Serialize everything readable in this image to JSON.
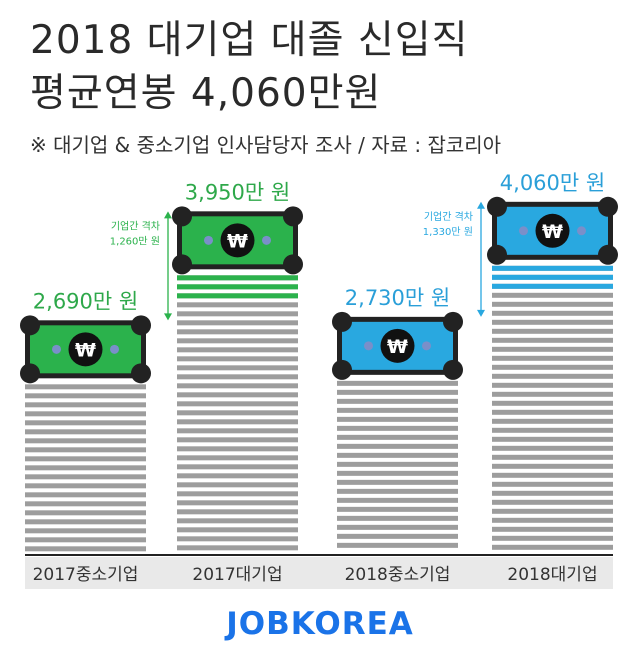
{
  "header": {
    "title_line1": "2018 대기업 대졸 신입직",
    "title_line2": "평균연봉 4,060만원",
    "subtitle": "※ 대기업 & 중소기업 인사담당자 조사   /  자료 : 잡코리아"
  },
  "brand": "JOBKOREA",
  "chart_data": {
    "type": "bar",
    "categories": [
      "2017중소기업",
      "2017대기업",
      "2018중소기업",
      "2018대기업"
    ],
    "values": [
      2690,
      3950,
      2730,
      4060
    ],
    "value_labels": [
      "2,690만 원",
      "3,950만 원",
      "2,730만 원",
      "4,060만 원"
    ],
    "currency_symbol": "₩",
    "colors": {
      "2017": "#2bb24c",
      "2018": "#29a8e0",
      "value_label_2017": "#2ea84a",
      "value_label_2018": "#2a9fd8",
      "stripe": "#9d9d9d",
      "axis": "#222222"
    },
    "annotations": [
      {
        "from": 2690,
        "to": 3950,
        "lines": [
          "기업간 격차",
          "1,260만 원"
        ],
        "color": "#2bb24c"
      },
      {
        "from": 2730,
        "to": 4060,
        "lines": [
          "기업간 격차",
          "1,330만 원"
        ],
        "color": "#29a8e0"
      }
    ],
    "axis_label_background": "#e9e9e9"
  }
}
